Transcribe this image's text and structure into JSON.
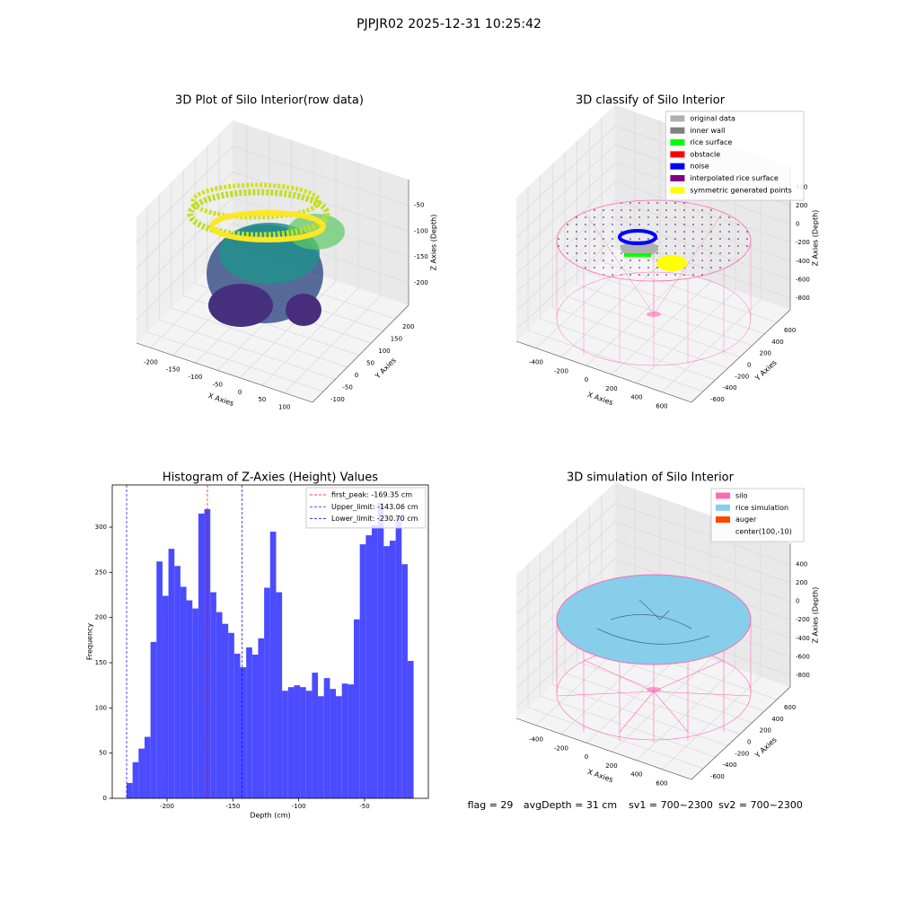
{
  "title": "PJPJR02 2025-12-31 10:25:42",
  "chart_data": [
    {
      "type": "scatter3d",
      "title": "3D Plot of Silo Interior(row data)",
      "xlabel": "X Axies",
      "ylabel": "Y Axies",
      "zlabel": "Z Axies (Depth)",
      "xlim": [
        -232,
        163
      ],
      "xticks": [
        -200,
        -150,
        -100,
        -50,
        0,
        50,
        100
      ],
      "ylim": [
        -145,
        256
      ],
      "yticks": [
        -100,
        -50,
        0,
        50,
        100,
        150,
        200
      ],
      "zlim": [
        -244,
        0
      ],
      "zticks": [
        -200,
        -150,
        -100,
        -50
      ]
    },
    {
      "type": "scatter3d",
      "title": "3D classify of Silo Interior",
      "xlabel": "X Axies",
      "ylabel": "Y Axies",
      "zlabel": "Z Axies (Depth)",
      "xlim": [
        -557,
        836
      ],
      "xticks": [
        -400,
        -200,
        0,
        200,
        400,
        600
      ],
      "ylim": [
        -790,
        820
      ],
      "yticks": [
        -600,
        -400,
        -200,
        0,
        200,
        400,
        600
      ],
      "zlim": [
        -926,
        627
      ],
      "zticks": [
        -800,
        -600,
        -400,
        -200,
        0,
        200,
        400
      ],
      "legend_loc": "upper right",
      "legend": [
        {
          "name": "original data",
          "color": "#b0b0b0"
        },
        {
          "name": "inner wall",
          "color": "#808080"
        },
        {
          "name": "rice surface",
          "color": "#00ff00"
        },
        {
          "name": "obstacle",
          "color": "#ff0000"
        },
        {
          "name": "noise",
          "color": "#0000ff"
        },
        {
          "name": "interpolated rice surface",
          "color": "#800080"
        },
        {
          "name": "symmetric generated points",
          "color": "#ffff00"
        }
      ]
    },
    {
      "type": "histogram",
      "title": "Histogram of Z-Axies (Height) Values",
      "xlabel": "Depth (cm)",
      "ylabel": "Frequency",
      "color": "#4b4bff",
      "bins": [
        -230.7,
        -226.16,
        -221.62,
        -217.08,
        -212.54,
        -208.0,
        -203.46,
        -198.92,
        -194.38,
        -189.84,
        -185.3,
        -180.76,
        -176.22,
        -171.68,
        -167.14,
        -162.6,
        -158.06,
        -153.52,
        -148.98,
        -144.44,
        -139.9,
        -135.36,
        -130.82,
        -126.28,
        -121.74,
        -117.2,
        -112.66,
        -108.12,
        -103.58,
        -99.04,
        -94.5,
        -89.96,
        -85.42,
        -80.88,
        -76.34,
        -71.8,
        -67.26,
        -62.72,
        -58.18,
        -53.64,
        -49.1,
        -44.56,
        -40.02,
        -35.48,
        -30.94,
        -26.4,
        -21.86,
        -17.32,
        -12.78
      ],
      "counts": [
        17,
        40,
        55,
        68,
        173,
        262,
        224,
        276,
        257,
        234,
        219,
        210,
        315,
        320,
        228,
        206,
        193,
        183,
        160,
        145,
        167,
        159,
        177,
        233,
        295,
        228,
        119,
        123,
        125,
        123,
        119,
        139,
        113,
        133,
        121,
        113,
        127,
        126,
        198,
        281,
        291,
        302,
        327,
        279,
        285,
        313,
        259,
        152
      ],
      "xlim": [
        -241.6,
        -1.6
      ],
      "xticks": [
        -200,
        -150,
        -100,
        -50
      ],
      "ylim": [
        0,
        346.7
      ],
      "yticks": [
        0,
        50,
        100,
        150,
        200,
        250,
        300
      ],
      "legend_loc": "upper right",
      "vlines": [
        {
          "value": -169.35,
          "label": "first_peak: -169.35 cm",
          "color": "#ff0000"
        },
        {
          "value": -143.06,
          "label": "Upper_limit: -143.06 cm",
          "color": "#0000ff"
        },
        {
          "value": -230.7,
          "label": "Lower_limit: -230.70 cm",
          "color": "#0000ff"
        }
      ]
    },
    {
      "type": "scatter3d",
      "title": "3D simulation of Silo Interior",
      "xlabel": "X Axies",
      "ylabel": "Y Axies",
      "zlabel": "Z Axies (Depth)",
      "xlim": [
        -557,
        836
      ],
      "xticks": [
        -400,
        -200,
        0,
        200,
        400,
        600
      ],
      "ylim": [
        -790,
        820
      ],
      "yticks": [
        -600,
        -400,
        -200,
        0,
        200,
        400,
        600
      ],
      "zlim": [
        -926,
        627
      ],
      "zticks": [
        -800,
        -600,
        -400,
        -200,
        0,
        200,
        400
      ],
      "legend_loc": "upper right",
      "legend": [
        {
          "name": "silo",
          "color": "#ff69b4"
        },
        {
          "name": "rice simulation",
          "color": "#87ceeb"
        },
        {
          "name": "auger",
          "color": "#ff4500"
        },
        {
          "name": "center(100,-10)"
        }
      ]
    }
  ],
  "footer": [
    "flag = 29",
    "avgDepth = 31 cm",
    "sv1 = 700~2300",
    "sv2 = 700~2300"
  ]
}
